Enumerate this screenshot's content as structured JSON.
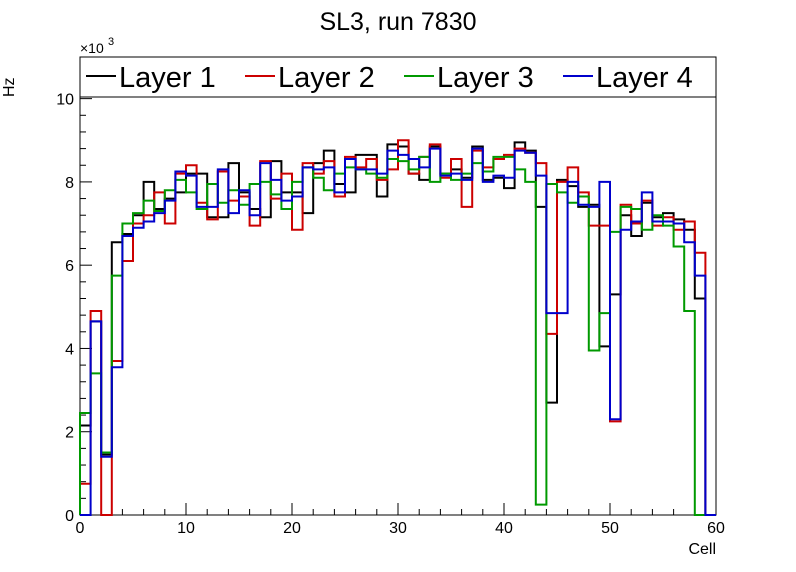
{
  "chart_data": {
    "type": "step",
    "title": "SL3, run 7830",
    "xlabel": "Cell",
    "ylabel": "Hz",
    "y_exponent_label": "×10",
    "y_exponent_power": "3",
    "xlim": [
      0,
      60
    ],
    "ylim": [
      0,
      11
    ],
    "x_ticks": [
      0,
      10,
      20,
      30,
      40,
      50,
      60
    ],
    "y_ticks": [
      0,
      2,
      4,
      6,
      8,
      10
    ],
    "legend_position": "top",
    "series": [
      {
        "name": "Layer 1",
        "color": "#000000",
        "values": [
          2.15,
          4.65,
          1.45,
          6.55,
          6.75,
          7.2,
          8.0,
          7.35,
          7.6,
          7.75,
          8.2,
          8.2,
          7.15,
          7.15,
          8.45,
          7.75,
          7.35,
          7.15,
          8.5,
          7.75,
          7.75,
          7.25,
          8.45,
          8.75,
          7.95,
          7.75,
          8.65,
          8.65,
          7.65,
          8.9,
          8.85,
          8.2,
          8.05,
          8.85,
          8.2,
          8.3,
          8.1,
          8.85,
          8.05,
          8.1,
          7.85,
          8.95,
          8.75,
          7.4,
          2.7,
          8.05,
          7.9,
          7.4,
          7.45,
          4.05,
          5.3,
          7.2,
          6.7,
          7.5,
          7.15,
          7.25,
          7.1,
          6.85,
          5.2,
          0.0
        ]
      },
      {
        "name": "Layer 2",
        "color": "#cc0000",
        "values": [
          0.75,
          4.9,
          0.0,
          3.7,
          6.1,
          7.0,
          7.2,
          7.75,
          7.0,
          8.2,
          8.4,
          7.5,
          7.1,
          8.25,
          7.55,
          7.65,
          6.95,
          8.5,
          7.6,
          8.2,
          6.85,
          8.45,
          8.2,
          8.5,
          7.65,
          8.6,
          8.35,
          8.55,
          8.05,
          8.3,
          9.0,
          8.2,
          8.6,
          8.9,
          8.1,
          8.55,
          7.4,
          8.75,
          8.35,
          8.55,
          8.65,
          8.8,
          8.7,
          8.45,
          4.35,
          8.0,
          8.35,
          7.75,
          6.95,
          6.95,
          2.25,
          7.45,
          7.0,
          7.55,
          6.95,
          7.15,
          6.85,
          7.05,
          6.3,
          0.0
        ]
      },
      {
        "name": "Layer 3",
        "color": "#009900",
        "values": [
          2.45,
          3.4,
          1.5,
          5.75,
          7.0,
          7.25,
          7.55,
          7.3,
          7.8,
          8.05,
          7.75,
          7.35,
          7.95,
          7.5,
          7.8,
          7.45,
          7.95,
          8.0,
          7.7,
          7.35,
          8.0,
          8.35,
          8.1,
          7.8,
          8.2,
          8.35,
          8.3,
          8.2,
          8.1,
          8.55,
          8.5,
          8.3,
          8.6,
          8.0,
          8.2,
          8.05,
          8.2,
          8.45,
          8.25,
          8.6,
          8.6,
          8.3,
          8.0,
          0.25,
          7.95,
          7.75,
          7.5,
          7.65,
          3.95,
          4.85,
          6.8,
          7.4,
          7.35,
          6.85,
          7.2,
          6.95,
          6.45,
          4.9,
          0.0,
          0.0
        ]
      },
      {
        "name": "Layer 4",
        "color": "#0000cc",
        "values": [
          0.0,
          4.65,
          1.4,
          3.55,
          6.7,
          6.9,
          7.05,
          7.25,
          7.55,
          8.25,
          8.15,
          7.4,
          7.4,
          8.3,
          7.25,
          7.8,
          7.2,
          8.45,
          8.05,
          7.55,
          7.65,
          8.35,
          8.3,
          8.35,
          7.75,
          8.55,
          8.3,
          8.3,
          8.2,
          8.75,
          8.65,
          8.55,
          8.35,
          8.8,
          8.15,
          8.2,
          8.05,
          8.8,
          8.0,
          8.15,
          8.1,
          8.75,
          8.7,
          8.15,
          4.85,
          4.85,
          8.0,
          7.45,
          7.4,
          8.0,
          2.3,
          6.85,
          7.05,
          7.75,
          7.05,
          7.05,
          7.0,
          6.55,
          5.75,
          0.0
        ]
      }
    ]
  }
}
